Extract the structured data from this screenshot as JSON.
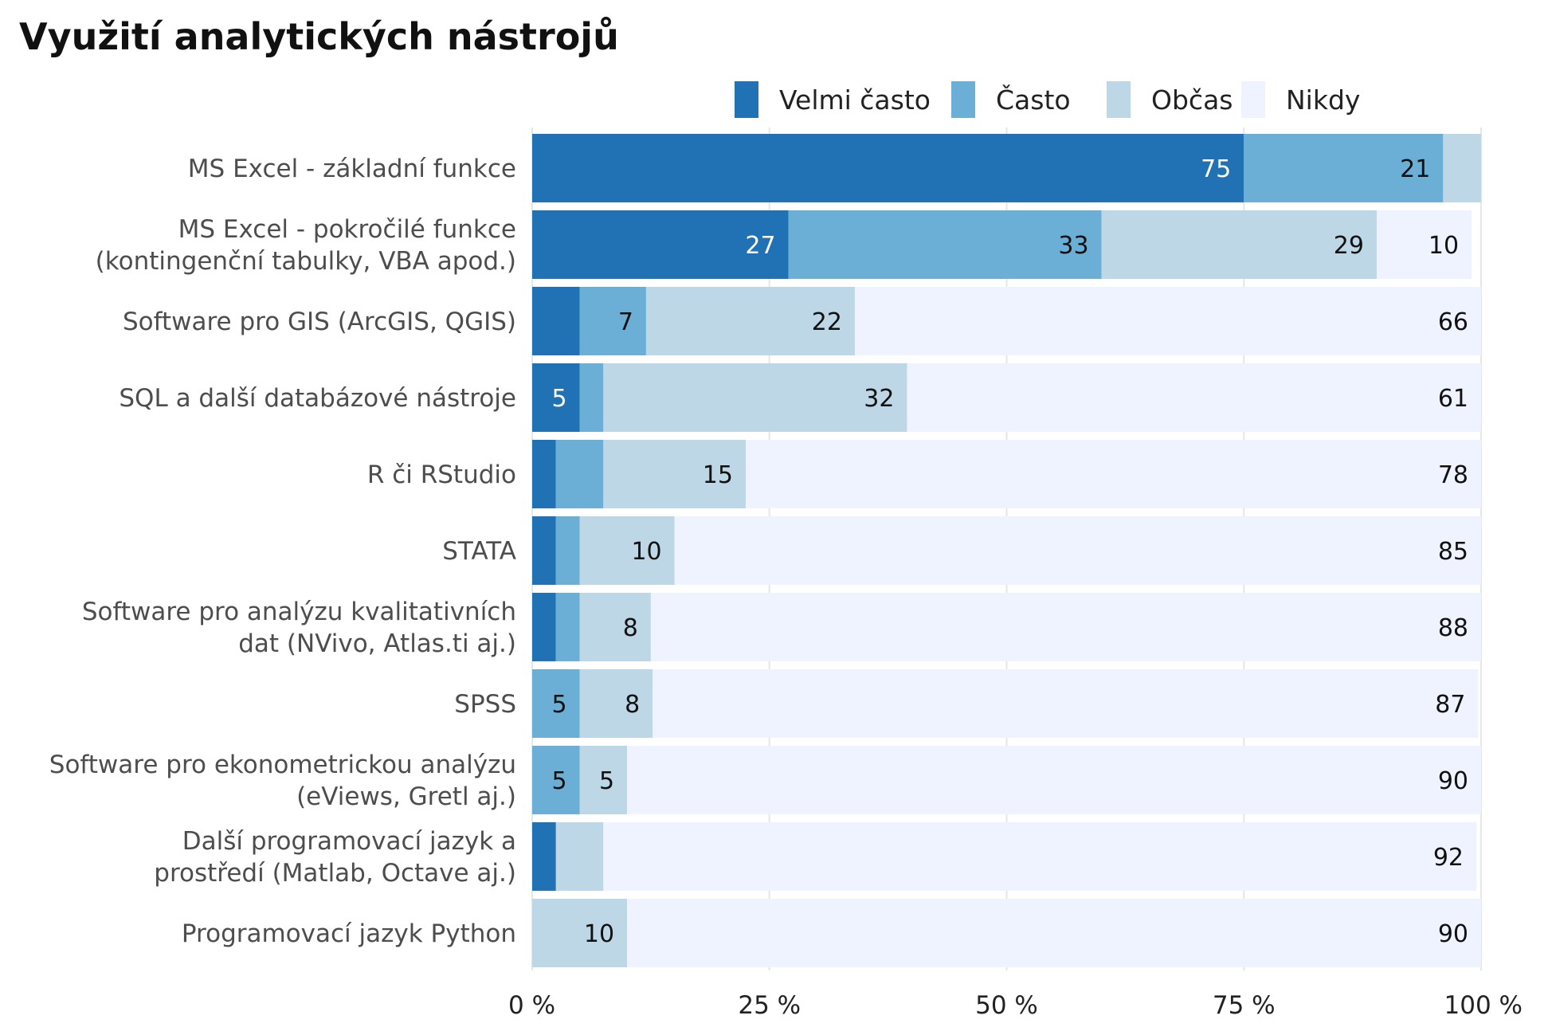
{
  "chart_data": {
    "type": "bar",
    "orientation": "horizontal",
    "stacked": true,
    "title": "Využití analytických nástrojů",
    "categories": [
      [
        "MS Excel - základní funkce"
      ],
      [
        "MS Excel - pokročilé funkce",
        "(kontingenční tabulky, VBA apod.)"
      ],
      [
        "Software pro GIS (ArcGIS, QGIS)"
      ],
      [
        "SQL a další databázové nástroje"
      ],
      [
        "R či RStudio"
      ],
      [
        "STATA"
      ],
      [
        "Software pro analýzu kvalitativních",
        "dat (NVivo, Atlas.ti aj.)"
      ],
      [
        "SPSS"
      ],
      [
        "Software pro ekonometrickou analýzu",
        "(eViews, Gretl aj.)"
      ],
      [
        "Další programovací jazyk a",
        "prostředí (Matlab, Octave aj.)"
      ],
      [
        "Programovací jazyk Python"
      ]
    ],
    "series": [
      {
        "name": "Velmi často",
        "color": "#2171b5",
        "label_color": "#ffffff",
        "values": [
          75,
          27,
          5,
          5,
          2.5,
          2.5,
          2.5,
          0,
          0,
          2.5,
          0
        ],
        "labels": [
          "75",
          "27",
          "",
          "5",
          "",
          "",
          "",
          "",
          "",
          "",
          ""
        ]
      },
      {
        "name": "Často",
        "color": "#6baed6",
        "label_color": "#111111",
        "values": [
          21,
          33,
          7,
          2.5,
          5,
          2.5,
          2.5,
          5,
          5,
          0,
          0
        ],
        "labels": [
          "21",
          "33",
          "7",
          "",
          "",
          "",
          "",
          "5",
          "5",
          "",
          ""
        ]
      },
      {
        "name": "Občas",
        "color": "#bdd7e7",
        "label_color": "#111111",
        "values": [
          4,
          29,
          22,
          32,
          15,
          10,
          7.5,
          7.7,
          5,
          5,
          10
        ],
        "labels": [
          "",
          "29",
          "22",
          "32",
          "15",
          "10",
          "8",
          "8",
          "5",
          "",
          "10"
        ]
      },
      {
        "name": "Nikdy",
        "color": "#eff3ff",
        "label_color": "#111111",
        "values": [
          0,
          10,
          66,
          61,
          78,
          85,
          88,
          87,
          90,
          92,
          90
        ],
        "labels": [
          "",
          "10",
          "66",
          "61",
          "78",
          "85",
          "88",
          "87",
          "90",
          "92",
          "90"
        ]
      }
    ],
    "x_ticks": [
      "0 %",
      "25 %",
      "50 %",
      "75 %",
      "100 %"
    ],
    "xlim": [
      0,
      100
    ],
    "grid": true,
    "legend_position": "top-right"
  }
}
